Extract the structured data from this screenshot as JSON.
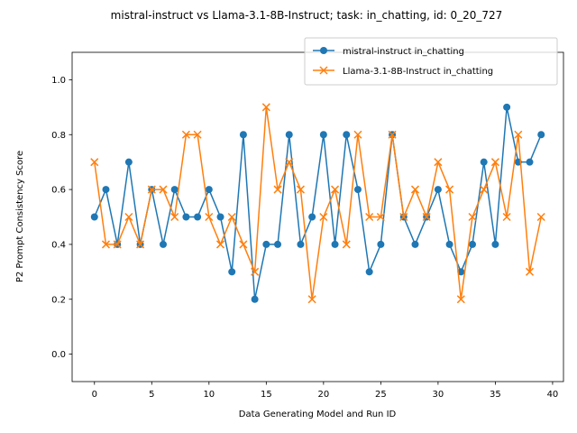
{
  "chart_data": {
    "type": "line",
    "title": "mistral-instruct vs Llama-3.1-8B-Instruct; task: in_chatting, id: 0_20_727",
    "xlabel": "Data Generating Model and Run ID",
    "ylabel": "P2 Prompt Consistency Score",
    "xlim": [
      -1.95,
      40.95
    ],
    "ylim": [
      -0.1,
      1.1
    ],
    "xticks": [
      0,
      5,
      10,
      15,
      20,
      25,
      30,
      35,
      40
    ],
    "yticks": [
      0.0,
      0.2,
      0.4,
      0.6,
      0.8,
      1.0
    ],
    "xtick_labels": [
      "0",
      "5",
      "10",
      "15",
      "20",
      "25",
      "30",
      "35",
      "40"
    ],
    "ytick_labels": [
      "0.0",
      "0.2",
      "0.4",
      "0.6",
      "0.8",
      "1.0"
    ],
    "grid": false,
    "legend_position": "upper right",
    "x": [
      0,
      1,
      2,
      3,
      4,
      5,
      6,
      7,
      8,
      9,
      10,
      11,
      12,
      13,
      14,
      15,
      16,
      17,
      18,
      19,
      20,
      21,
      22,
      23,
      24,
      25,
      26,
      27,
      28,
      29,
      30,
      31,
      32,
      33,
      34,
      35,
      36,
      37,
      38,
      39
    ],
    "series": [
      {
        "name": "mistral-instruct in_chatting",
        "color": "#1f77b4",
        "marker": "circle",
        "values": [
          0.5,
          0.6,
          0.4,
          0.7,
          0.4,
          0.6,
          0.4,
          0.6,
          0.5,
          0.5,
          0.6,
          0.5,
          0.3,
          0.8,
          0.2,
          0.4,
          0.4,
          0.8,
          0.4,
          0.5,
          0.8,
          0.4,
          0.8,
          0.6,
          0.3,
          0.4,
          0.8,
          0.5,
          0.4,
          0.5,
          0.6,
          0.4,
          0.3,
          0.4,
          0.7,
          0.4,
          0.9,
          0.7,
          0.7,
          0.8
        ]
      },
      {
        "name": "Llama-3.1-8B-Instruct in_chatting",
        "color": "#ff7f0e",
        "marker": "x",
        "values": [
          0.7,
          0.4,
          0.4,
          0.5,
          0.4,
          0.6,
          0.6,
          0.5,
          0.8,
          0.8,
          0.5,
          0.4,
          0.5,
          0.4,
          0.3,
          0.9,
          0.6,
          0.7,
          0.6,
          0.2,
          0.5,
          0.6,
          0.4,
          0.8,
          0.5,
          0.5,
          0.8,
          0.5,
          0.6,
          0.5,
          0.7,
          0.6,
          0.2,
          0.5,
          0.6,
          0.7,
          0.5,
          0.8,
          0.3,
          0.5
        ]
      }
    ]
  }
}
